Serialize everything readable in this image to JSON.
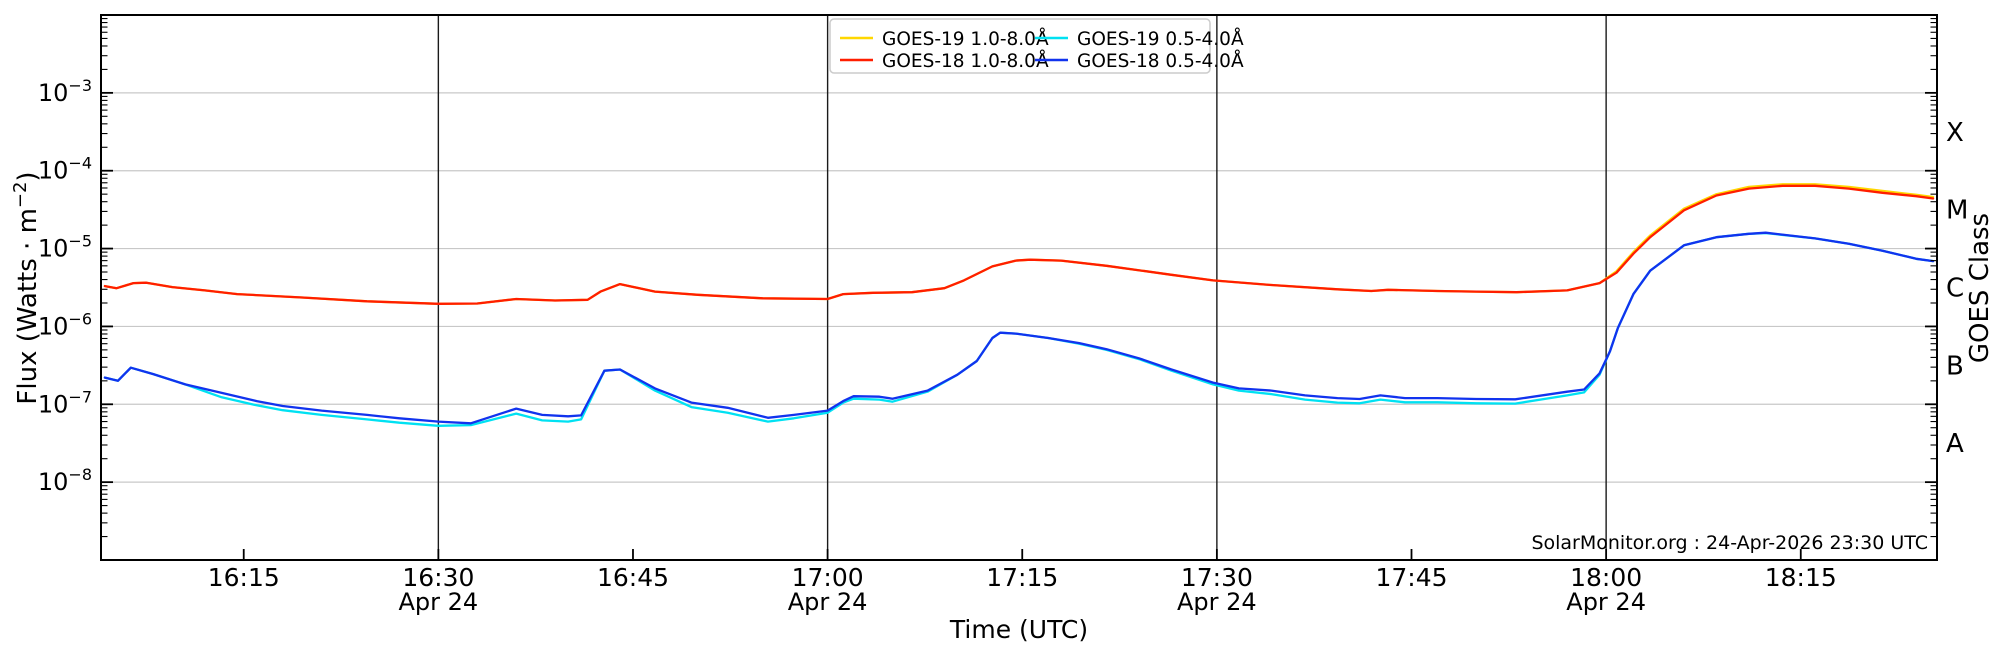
{
  "watermark": "SolarMonitor.org : 24-Apr-2026 23:30 UTC",
  "chart_data": {
    "type": "line",
    "title": "",
    "xlabel": "Time (UTC)",
    "ylabel": "Flux (Watts · m⁻²)",
    "ylabel_parts": {
      "pre": "Flux (Watts · m",
      "sup": "−2",
      "post": ")"
    },
    "ylabel_right": "GOES Class",
    "yscale": "log",
    "ylim": [
      1e-09,
      0.01
    ],
    "grid_decades": [
      -3,
      -4,
      -5,
      -6,
      -7,
      -8
    ],
    "y_tick_exponents": [
      -3,
      -4,
      -5,
      -6,
      -7,
      -8
    ],
    "x_unit": "minutes after 16:00 UTC",
    "x_range_minutes": [
      4.0,
      145.5
    ],
    "x_major_ticks": [
      {
        "t": 15,
        "label": "16:15"
      },
      {
        "t": 30,
        "label": "16:30"
      },
      {
        "t": 45,
        "label": "16:45"
      },
      {
        "t": 60,
        "label": "17:00"
      },
      {
        "t": 75,
        "label": "17:15"
      },
      {
        "t": 90,
        "label": "17:30"
      },
      {
        "t": 105,
        "label": "17:45"
      },
      {
        "t": 120,
        "label": "18:00"
      },
      {
        "t": 135,
        "label": "18:15"
      }
    ],
    "date_lines": [
      {
        "t": 30,
        "label": "Apr 24"
      },
      {
        "t": 60,
        "label": "Apr 24"
      },
      {
        "t": 90,
        "label": "Apr 24"
      },
      {
        "t": 120,
        "label": "Apr 24"
      }
    ],
    "goes_classes": [
      {
        "label": "X",
        "flux_min": 0.0001,
        "flux_max": 0.001
      },
      {
        "label": "M",
        "flux_min": 1e-05,
        "flux_max": 0.0001
      },
      {
        "label": "C",
        "flux_min": 1e-06,
        "flux_max": 1e-05
      },
      {
        "label": "B",
        "flux_min": 1e-07,
        "flux_max": 1e-06
      },
      {
        "label": "A",
        "flux_min": 1e-08,
        "flux_max": 1e-07
      }
    ],
    "legend": [
      {
        "name": "GOES-19 1.0-8.0Å",
        "color": "#FFD700",
        "col": 0,
        "row": 0
      },
      {
        "name": "GOES-18 1.0-8.0Å",
        "color": "#FF1E00",
        "col": 0,
        "row": 1
      },
      {
        "name": "GOES-19 0.5-4.0Å",
        "color": "#00E1F2",
        "col": 1,
        "row": 0
      },
      {
        "name": "GOES-18 0.5-4.0Å",
        "color": "#1133EE",
        "col": 1,
        "row": 1
      }
    ],
    "series": [
      {
        "name": "GOES-19 1.0-8.0Å",
        "color": "#FFD700",
        "t": [
          4.3,
          5.2,
          6.5,
          7.5,
          9.5,
          12,
          14.5,
          19.5,
          24.5,
          30,
          33,
          36,
          39,
          41.5,
          42.5,
          44,
          46.7,
          50,
          55,
          60,
          61.2,
          63.5,
          66.5,
          69,
          70.5,
          72.7,
          74.5,
          75.6,
          78,
          81.5,
          86.5,
          89.7,
          94.2,
          99.3,
          101.9,
          103.2,
          107,
          110,
          113.1,
          117,
          119.5,
          120.8,
          122.1,
          123.4,
          126,
          128.5,
          131,
          133.6,
          136.1,
          138.7,
          141.3,
          143.9,
          145.2
        ],
        "v": [
          3.3e-06,
          3.1e-06,
          3.6e-06,
          3.65e-06,
          3.2e-06,
          2.9e-06,
          2.6e-06,
          2.35e-06,
          2.1e-06,
          1.95e-06,
          1.97e-06,
          2.25e-06,
          2.15e-06,
          2.2e-06,
          2.8e-06,
          3.5e-06,
          2.8e-06,
          2.55e-06,
          2.3e-06,
          2.25e-06,
          2.6e-06,
          2.7e-06,
          2.75e-06,
          3.1e-06,
          3.9e-06,
          5.9e-06,
          7e-06,
          7.2e-06,
          7e-06,
          6e-06,
          4.6e-06,
          3.9e-06,
          3.4e-06,
          3e-06,
          2.85e-06,
          2.95e-06,
          2.85e-06,
          2.8e-06,
          2.75e-06,
          2.9e-06,
          3.6e-06,
          5.1e-06,
          9e-06,
          1.47e-05,
          3.25e-05,
          5e-05,
          6.2e-05,
          6.7e-05,
          6.7e-05,
          6.2e-05,
          5.5e-05,
          4.9e-05,
          4.6e-05
        ]
      },
      {
        "name": "GOES-18 1.0-8.0Å",
        "color": "#FF1E00",
        "t": [
          4.3,
          5.2,
          6.5,
          7.5,
          9.5,
          12,
          14.5,
          19.5,
          24.5,
          30,
          33,
          36,
          39,
          41.5,
          42.5,
          44,
          46.7,
          50,
          55,
          60,
          61.2,
          63.5,
          66.5,
          69,
          70.5,
          72.7,
          74.5,
          75.6,
          78,
          81.5,
          86.5,
          89.7,
          94.2,
          99.3,
          101.9,
          103.2,
          107,
          110,
          113.1,
          117,
          119.5,
          120.8,
          122.1,
          123.4,
          126,
          128.5,
          131,
          133.6,
          136.1,
          138.7,
          141.3,
          143.9,
          145.2
        ],
        "v": [
          3.3e-06,
          3.1e-06,
          3.6e-06,
          3.65e-06,
          3.2e-06,
          2.9e-06,
          2.6e-06,
          2.35e-06,
          2.1e-06,
          1.95e-06,
          1.97e-06,
          2.25e-06,
          2.15e-06,
          2.2e-06,
          2.8e-06,
          3.5e-06,
          2.8e-06,
          2.55e-06,
          2.3e-06,
          2.25e-06,
          2.6e-06,
          2.7e-06,
          2.75e-06,
          3.1e-06,
          3.9e-06,
          5.9e-06,
          7e-06,
          7.2e-06,
          7e-06,
          6e-06,
          4.6e-06,
          3.9e-06,
          3.4e-06,
          3e-06,
          2.85e-06,
          2.95e-06,
          2.85e-06,
          2.8e-06,
          2.75e-06,
          2.9e-06,
          3.6e-06,
          4.9e-06,
          8.6e-06,
          1.4e-05,
          3.1e-05,
          4.8e-05,
          5.9e-05,
          6.4e-05,
          6.4e-05,
          5.9e-05,
          5.2e-05,
          4.7e-05,
          4.4e-05
        ]
      },
      {
        "name": "GOES-19 0.5-4.0Å",
        "color": "#00E1F2",
        "t": [
          4.3,
          5.3,
          6.3,
          8,
          10.5,
          13.3,
          16,
          18,
          21,
          24.5,
          27,
          30,
          32.5,
          36,
          38,
          40,
          41,
          42.8,
          44,
          46.7,
          49.5,
          52.3,
          55.4,
          57.4,
          60,
          61.2,
          62,
          64,
          65,
          67.7,
          70,
          71.5,
          72.7,
          73.3,
          74.5,
          77,
          79.4,
          81.5,
          84,
          86.5,
          89.7,
          91.7,
          94.2,
          96.8,
          99.3,
          101,
          102.6,
          104.5,
          107,
          110,
          113,
          117,
          118.3,
          119.5,
          120.3,
          120.9,
          122.1,
          123.4,
          126,
          128.5,
          131,
          132.3,
          136.1,
          138.7,
          141.3,
          143.9,
          145.2
        ],
        "v": [
          2.2e-07,
          2e-07,
          2.95e-07,
          2.45e-07,
          1.8e-07,
          1.23e-07,
          9.7e-08,
          8.4e-08,
          7.3e-08,
          6.4e-08,
          5.8e-08,
          5.3e-08,
          5.4e-08,
          7.6e-08,
          6.2e-08,
          6e-08,
          6.4e-08,
          2.7e-07,
          2.8e-07,
          1.5e-07,
          9.2e-08,
          7.8e-08,
          6e-08,
          6.6e-08,
          7.8e-08,
          1.05e-07,
          1.18e-07,
          1.15e-07,
          1.08e-07,
          1.45e-07,
          2.4e-07,
          3.6e-07,
          7.1e-07,
          8.3e-07,
          8.1e-07,
          7.1e-07,
          6e-07,
          5e-07,
          3.8e-07,
          2.7e-07,
          1.8e-07,
          1.5e-07,
          1.35e-07,
          1.15e-07,
          1.05e-07,
          1.03e-07,
          1.15e-07,
          1.06e-07,
          1.06e-07,
          1.03e-07,
          1.02e-07,
          1.3e-07,
          1.42e-07,
          2.4e-07,
          4.8e-07,
          9.5e-07,
          2.6e-06,
          5.2e-06,
          1.1e-05,
          1.4e-05,
          1.55e-05,
          1.58e-05,
          1.35e-05,
          1.15e-05,
          9.4e-06,
          7.4e-06,
          6.9e-06
        ]
      },
      {
        "name": "GOES-18 0.5-4.0Å",
        "color": "#1133EE",
        "t": [
          4.3,
          5.3,
          6.3,
          8,
          10.5,
          13.3,
          16,
          18,
          21,
          24.5,
          27,
          30,
          32.5,
          36,
          38,
          40,
          41,
          42.8,
          44,
          46.7,
          49.5,
          52.3,
          55.4,
          57.4,
          60,
          61.2,
          62,
          64,
          65,
          67.7,
          70,
          71.5,
          72.7,
          73.3,
          74.5,
          77,
          79.4,
          81.5,
          84,
          86.5,
          89.7,
          91.7,
          94.2,
          96.8,
          99.3,
          101,
          102.6,
          104.5,
          107,
          110,
          113,
          117,
          118.3,
          119.5,
          120.3,
          120.9,
          122.1,
          123.4,
          126,
          128.5,
          131,
          132.3,
          136.1,
          138.7,
          141.3,
          143.9,
          145.2
        ],
        "v": [
          2.2e-07,
          2e-07,
          2.95e-07,
          2.45e-07,
          1.8e-07,
          1.4e-07,
          1.1e-07,
          9.5e-08,
          8.3e-08,
          7.3e-08,
          6.6e-08,
          6e-08,
          5.7e-08,
          8.8e-08,
          7.3e-08,
          7e-08,
          7.2e-08,
          2.7e-07,
          2.8e-07,
          1.6e-07,
          1.05e-07,
          9e-08,
          6.7e-08,
          7.3e-08,
          8.3e-08,
          1.1e-07,
          1.27e-07,
          1.25e-07,
          1.18e-07,
          1.5e-07,
          2.4e-07,
          3.6e-07,
          7.1e-07,
          8.3e-07,
          8.1e-07,
          7.1e-07,
          6.1e-07,
          5.1e-07,
          3.9e-07,
          2.8e-07,
          1.9e-07,
          1.6e-07,
          1.5e-07,
          1.3e-07,
          1.2e-07,
          1.17e-07,
          1.3e-07,
          1.2e-07,
          1.2e-07,
          1.17e-07,
          1.16e-07,
          1.45e-07,
          1.55e-07,
          2.5e-07,
          4.8e-07,
          9.5e-07,
          2.6e-06,
          5.2e-06,
          1.1e-05,
          1.4e-05,
          1.55e-05,
          1.6e-05,
          1.35e-05,
          1.15e-05,
          9.4e-06,
          7.4e-06,
          6.9e-06
        ]
      }
    ],
    "colors": {
      "grid": "#C8C8C8",
      "date_line": "#1A1A1A",
      "spine": "#000000",
      "background": "#FFFFFF"
    },
    "legend_position": "top-center",
    "grid": true
  }
}
